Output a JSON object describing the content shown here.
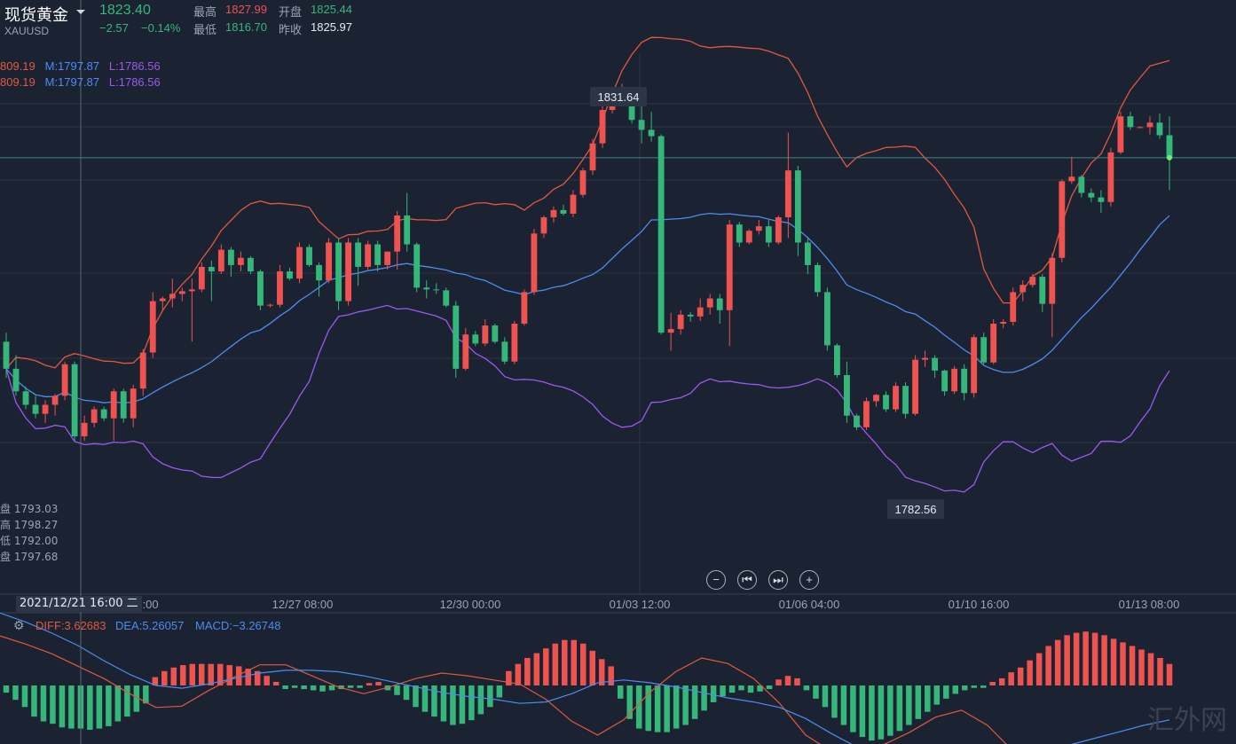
{
  "header": {
    "title": "现货黄金",
    "symbol": "XAUUSD",
    "price": "1823.40",
    "change": "−2.57",
    "change_pct": "−0.14%",
    "high_label": "最高",
    "high": "1827.99",
    "open_label": "开盘",
    "open": "1825.44",
    "low_label": "最低",
    "low": "1816.70",
    "prev_label": "昨收",
    "prev": "1825.97"
  },
  "boll": {
    "row1": {
      "u": "809.19",
      "m": "M:1797.87",
      "l": "L:1786.56"
    },
    "row2": {
      "u": "809.19",
      "m": "M:1797.87",
      "l": "L:1786.56"
    }
  },
  "ohlc_panel": {
    "open": "盘 1793.03",
    "high": "高 1798.27",
    "low": "低 1792.00",
    "close": "盘 1797.68"
  },
  "crosshair_date": "2021/12/21 16:00 二",
  "macd_labels": {
    "diff": "DIFF:3.62683",
    "dea": "DEA:5.26057",
    "macd": "MACD:−3.26748"
  },
  "nav": {
    "zoom_out": "−",
    "prev": "⏮",
    "next": "⏭",
    "zoom_in": "+"
  },
  "watermark": "汇外网",
  "colors": {
    "up": "#ef5350",
    "down": "#35b77a",
    "boll_upper": "#e0593e",
    "boll_mid": "#4b8df0",
    "boll_lower": "#9b59f0",
    "dea": "#4b8df0",
    "diff": "#e0593e",
    "bg": "#1b2231",
    "grid": "#2c3546"
  },
  "chart_data": {
    "type": "candlestick",
    "title": "",
    "xlabel": "",
    "ylabel": "",
    "ylim": [
      1775,
      1835
    ],
    "x_ticks": [
      "2:00",
      "12/27 08:00",
      "12/30 00:00",
      "01/03 12:00",
      "01/06 04:00",
      "01/10 16:00",
      "01/13 08:00"
    ],
    "annotations": [
      {
        "label": "1831.64",
        "type": "max"
      },
      {
        "label": "1782.56",
        "type": "min"
      }
    ],
    "candles": [
      [
        1803,
        1804,
        1799,
        1800
      ],
      [
        1800,
        1801.5,
        1797,
        1797.5
      ],
      [
        1797.5,
        1798,
        1795.5,
        1796
      ],
      [
        1796,
        1797,
        1794.5,
        1795
      ],
      [
        1795,
        1796.5,
        1794,
        1796
      ],
      [
        1796,
        1797.2,
        1794.8,
        1797
      ],
      [
        1797,
        1800.8,
        1796.5,
        1800.5
      ],
      [
        1800.5,
        1800.8,
        1792,
        1792.5
      ],
      [
        1792.5,
        1794.8,
        1792,
        1794
      ],
      [
        1794,
        1795.8,
        1793.5,
        1795.5
      ],
      [
        1795.5,
        1795.8,
        1794.2,
        1794.5
      ],
      [
        1794.5,
        1797.8,
        1792,
        1797.5
      ],
      [
        1797.5,
        1797.8,
        1794,
        1794.5
      ],
      [
        1794.5,
        1798.2,
        1793.5,
        1797.8
      ],
      [
        1797.8,
        1802.2,
        1797,
        1801.8
      ],
      [
        1801.8,
        1808.5,
        1801.2,
        1807.5
      ],
      [
        1807.5,
        1808,
        1806.5,
        1807.8
      ],
      [
        1807.8,
        1810,
        1806.8,
        1808.3
      ],
      [
        1808.3,
        1809,
        1807.5,
        1808.6
      ],
      [
        1808.6,
        1810,
        1803,
        1808.8
      ],
      [
        1808.8,
        1811.8,
        1808.5,
        1811.3
      ],
      [
        1811.3,
        1812,
        1807.5,
        1810.8
      ],
      [
        1810.8,
        1813.8,
        1810.5,
        1813.2
      ],
      [
        1813.2,
        1813.5,
        1810.2,
        1811.5
      ],
      [
        1811.5,
        1813,
        1810.8,
        1812.3
      ],
      [
        1812.3,
        1812.5,
        1810.5,
        1810.8
      ],
      [
        1810.8,
        1811,
        1806.5,
        1807
      ],
      [
        1807,
        1807.2,
        1806.8,
        1807.1
      ],
      [
        1807.1,
        1811.5,
        1806.8,
        1810.8
      ],
      [
        1810.8,
        1811.2,
        1809.8,
        1810
      ],
      [
        1810,
        1814,
        1809.5,
        1813.5
      ],
      [
        1813.5,
        1813.8,
        1811.3,
        1811.5
      ],
      [
        1811.5,
        1811.8,
        1808,
        1809.8
      ],
      [
        1809.8,
        1814.5,
        1809.5,
        1814
      ],
      [
        1814,
        1814.5,
        1806.5,
        1807.5
      ],
      [
        1807.5,
        1814.5,
        1807,
        1814
      ],
      [
        1814,
        1814.5,
        1809.2,
        1811.3
      ],
      [
        1811.3,
        1814.2,
        1811,
        1813.8
      ],
      [
        1813.8,
        1814.2,
        1810.8,
        1811.5
      ],
      [
        1811.5,
        1812.5,
        1811,
        1813
      ],
      [
        1813,
        1817.5,
        1811,
        1817
      ],
      [
        1817,
        1819.5,
        1813,
        1813.8
      ],
      [
        1813.8,
        1814,
        1808.5,
        1809
      ],
      [
        1809,
        1809.8,
        1807.8,
        1808.8
      ],
      [
        1808.8,
        1809.5,
        1808.3,
        1808.7
      ],
      [
        1808.7,
        1809,
        1806.8,
        1807
      ],
      [
        1807,
        1807.5,
        1799,
        1800
      ],
      [
        1800,
        1804.5,
        1799.8,
        1803.8
      ],
      [
        1803.8,
        1804.2,
        1802.5,
        1802.8
      ],
      [
        1802.8,
        1805.5,
        1802.5,
        1804.8
      ],
      [
        1804.8,
        1805,
        1802.8,
        1803
      ],
      [
        1803,
        1803.5,
        1800.5,
        1800.8
      ],
      [
        1800.8,
        1805.3,
        1800.5,
        1805
      ],
      [
        1805,
        1808.8,
        1804.8,
        1808.5
      ],
      [
        1808.5,
        1815.5,
        1808.2,
        1815
      ],
      [
        1815,
        1817,
        1814.5,
        1816.8
      ],
      [
        1816.8,
        1818,
        1816.2,
        1817.6
      ],
      [
        1817.6,
        1818.2,
        1817,
        1817.2
      ],
      [
        1817.2,
        1819.8,
        1816.8,
        1819.3
      ],
      [
        1819.3,
        1822.3,
        1819,
        1822
      ],
      [
        1822,
        1825.5,
        1821.5,
        1825
      ],
      [
        1825,
        1829.2,
        1824.5,
        1828.7
      ],
      [
        1828.7,
        1830.2,
        1828.3,
        1829.8
      ],
      [
        1829.8,
        1831.6,
        1829.5,
        1830.2
      ],
      [
        1830.2,
        1830.6,
        1827.2,
        1827.6
      ],
      [
        1827.6,
        1829.3,
        1825,
        1826.5
      ],
      [
        1826.5,
        1828.5,
        1825.2,
        1825.8
      ],
      [
        1825.8,
        1826,
        1803.8,
        1804
      ],
      [
        1804,
        1806.2,
        1802,
        1804.4
      ],
      [
        1804.4,
        1806.5,
        1803.8,
        1806
      ],
      [
        1806,
        1806.3,
        1805.2,
        1805.8
      ],
      [
        1805.8,
        1807.8,
        1805.3,
        1806.8
      ],
      [
        1806.8,
        1808.3,
        1806,
        1807.8
      ],
      [
        1807.8,
        1808.3,
        1805,
        1806.5
      ],
      [
        1806.5,
        1816.5,
        1802.5,
        1816
      ],
      [
        1816,
        1816.3,
        1813.5,
        1814
      ],
      [
        1814,
        1815.5,
        1813.8,
        1815.3
      ],
      [
        1815.3,
        1816.5,
        1814.9,
        1815.8
      ],
      [
        1815.8,
        1816.5,
        1813.5,
        1814
      ],
      [
        1814,
        1817,
        1813.8,
        1816.8
      ],
      [
        1816.8,
        1826.2,
        1814.5,
        1822
      ],
      [
        1822,
        1822.5,
        1812.5,
        1814
      ],
      [
        1814,
        1814.5,
        1810.5,
        1811.5
      ],
      [
        1811.5,
        1811.8,
        1808,
        1808.5
      ],
      [
        1808.5,
        1809,
        1802,
        1802.6
      ],
      [
        1802.6,
        1802.8,
        1799,
        1799.3
      ],
      [
        1799.3,
        1800.8,
        1794,
        1794.8
      ],
      [
        1794.8,
        1795,
        1793.2,
        1793.5
      ],
      [
        1793.5,
        1796.8,
        1793.2,
        1796.4
      ],
      [
        1796.4,
        1797.2,
        1795.8,
        1797.1
      ],
      [
        1797.1,
        1797.5,
        1795.2,
        1795.5
      ],
      [
        1795.5,
        1798.5,
        1795.2,
        1798.1
      ],
      [
        1798.1,
        1798.5,
        1794.5,
        1795
      ],
      [
        1795,
        1801.5,
        1794.8,
        1801
      ],
      [
        1801,
        1802,
        1800.2,
        1801.2
      ],
      [
        1801.2,
        1801.5,
        1799,
        1799.8
      ],
      [
        1799.8,
        1799.9,
        1797,
        1797.5
      ],
      [
        1797.5,
        1800.3,
        1797.2,
        1800
      ],
      [
        1800,
        1800.5,
        1796.5,
        1797.3
      ],
      [
        1797.3,
        1803.8,
        1796.8,
        1803.5
      ],
      [
        1803.5,
        1804,
        1800.5,
        1800.7
      ],
      [
        1800.7,
        1805.5,
        1800.5,
        1805
      ],
      [
        1805,
        1805.5,
        1804.5,
        1805.2
      ],
      [
        1805.2,
        1809,
        1804.8,
        1808.5
      ],
      [
        1808.5,
        1809.8,
        1807.5,
        1809.3
      ],
      [
        1809.3,
        1810.5,
        1809,
        1810.2
      ],
      [
        1810.2,
        1810.5,
        1806.3,
        1807.2
      ],
      [
        1807.2,
        1812.8,
        1803.5,
        1812.3
      ],
      [
        1812.3,
        1821,
        1811.8,
        1820.8
      ],
      [
        1820.8,
        1823.5,
        1820.5,
        1821.3
      ],
      [
        1821.3,
        1821.5,
        1819,
        1819.5
      ],
      [
        1819.5,
        1820,
        1818.5,
        1819
      ],
      [
        1819,
        1819.8,
        1817.3,
        1818.5
      ],
      [
        1818.5,
        1824.5,
        1818,
        1824
      ],
      [
        1824,
        1828.5,
        1823.8,
        1828
      ],
      [
        1828,
        1828.5,
        1826.5,
        1826.8
      ],
      [
        1826.8,
        1826.9,
        1826.7,
        1826.8
      ],
      [
        1826.8,
        1828,
        1826,
        1827.3
      ],
      [
        1827.3,
        1828.3,
        1825.5,
        1825.9
      ],
      [
        1825.9,
        1828,
        1819.8,
        1823.4
      ]
    ],
    "series": [
      {
        "name": "DIFF",
        "values": [
          3.6,
          3.0,
          2.3,
          1.4,
          0.5,
          -0.6,
          -1.6,
          -1.5,
          -0.4,
          0.6,
          1.5,
          1.5,
          0.7,
          -0.1,
          -0.6,
          -0.1,
          0.5,
          0.9,
          0.7,
          0.4,
          0.1,
          -1.0,
          -2.6,
          -3.6,
          -2.5,
          -0.5,
          1.0,
          2.0,
          1.6,
          0.5,
          -1.3,
          -3.6,
          -4.8,
          -5.0,
          -4.3,
          -3.4,
          -2.3,
          -1.8,
          -2.9,
          -4.8,
          -6.1,
          -6.3,
          -5.9,
          -5.6,
          -5.0,
          -4.6
        ]
      },
      {
        "name": "DEA",
        "values": [
          5.26,
          4.6,
          3.8,
          2.9,
          1.8,
          0.8,
          0.0,
          -0.2,
          0.1,
          0.5,
          0.9,
          1.1,
          1.1,
          1.0,
          0.7,
          0.3,
          -0.1,
          -0.5,
          -0.8,
          -1.0,
          -1.3,
          -1.2,
          -0.6,
          0.2,
          0.4,
          0.2,
          -0.1,
          -0.5,
          -0.9,
          -1.2,
          -1.6,
          -2.4,
          -3.5,
          -4.5,
          -4.9,
          -5.2,
          -5.4,
          -5.3,
          -5.1,
          -5.0,
          -4.8,
          -4.4,
          -3.9,
          -3.4,
          -2.9,
          -2.5
        ]
      }
    ],
    "macd_hist": [
      -0.6,
      -1.2,
      -1.8,
      -2.6,
      -3.0,
      -3.2,
      -3.5,
      -3.6,
      -3.6,
      -3.7,
      -3.6,
      -3.4,
      -3.0,
      -2.6,
      -2.2,
      -1.5,
      0.7,
      1.2,
      1.5,
      1.7,
      1.8,
      1.8,
      1.8,
      1.8,
      1.7,
      1.6,
      1.4,
      1.2,
      0.8,
      0.3,
      -0.3,
      -0.2,
      -0.3,
      -0.4,
      -0.5,
      -0.4,
      -0.3,
      -0.2,
      -0.2,
      0.2,
      0.3,
      -0.4,
      -0.8,
      -1.2,
      -1.8,
      -2.2,
      -2.6,
      -3.0,
      -3.3,
      -3.2,
      -2.9,
      -2.4,
      -1.8,
      -1.0,
      1.2,
      1.8,
      2.3,
      2.7,
      3.1,
      3.5,
      3.8,
      3.8,
      3.5,
      2.9,
      2.2,
      1.6,
      -1.1,
      -2.8,
      -3.6,
      -3.8,
      -3.9,
      -3.9,
      -3.6,
      -3.3,
      -2.8,
      -2.1,
      -1.4,
      -0.9,
      -0.6,
      -0.4,
      -0.6,
      -0.5,
      -0.3,
      0.5,
      0.8,
      0.6,
      -0.4,
      -1.1,
      -1.8,
      -2.7,
      -3.3,
      -3.9,
      -4.3,
      -4.6,
      -4.5,
      -4.2,
      -3.8,
      -3.3,
      -2.8,
      -2.2,
      -1.6,
      -1.1,
      -0.7,
      -0.4,
      -0.2,
      -0.2,
      0.3,
      0.6,
      1.1,
      1.5,
      2.1,
      2.7,
      3.3,
      3.8,
      4.2,
      4.4,
      4.5,
      4.4,
      4.2,
      3.9,
      3.6,
      3.3,
      3.0,
      2.7,
      2.3,
      1.8
    ]
  }
}
